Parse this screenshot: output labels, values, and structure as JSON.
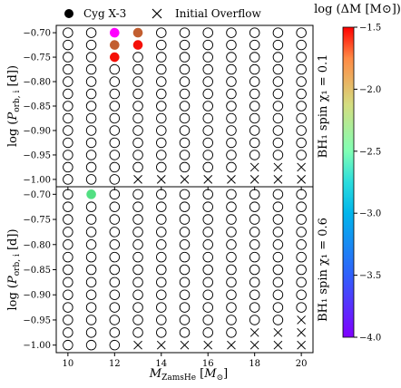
{
  "legend": {
    "cyg_label": "Cyg X-3",
    "overflow_label": "Initial Overflow"
  },
  "colorbar": {
    "title": "log (ΔM [M⊙])",
    "range": [
      -4.0,
      -1.5
    ],
    "ticks": [
      "-1.5",
      "-2.0",
      "-2.5",
      "-3.0",
      "-3.5",
      "-4.0"
    ],
    "colormap": "rainbow"
  },
  "chart_data": [
    {
      "type": "scatter",
      "panel_label": "BH₁ spin χ₁ = 0.1",
      "xlabel": "M_ZamsHe [M⊙]",
      "ylabel": "log (P_orb,i [d])",
      "xlim": [
        9.5,
        20.5
      ],
      "ylim": [
        -1.015,
        -0.685
      ],
      "x_ticks": [
        10,
        12,
        14,
        16,
        18,
        20
      ],
      "y_ticks": [
        "-0.70",
        "-0.75",
        "-0.80",
        "-0.85",
        "-0.90",
        "-0.95",
        "-1.00"
      ],
      "grid_x": [
        10,
        11,
        12,
        13,
        14,
        15,
        16,
        17,
        18,
        19,
        20
      ],
      "grid_y": [
        -0.7,
        -0.725,
        -0.75,
        -0.775,
        -0.8,
        -0.825,
        -0.85,
        -0.875,
        -0.9,
        -0.925,
        -0.95,
        -0.975,
        -1.0
      ],
      "initial_overflow": [
        {
          "x": 13,
          "y": -1.0
        },
        {
          "x": 14,
          "y": -1.0
        },
        {
          "x": 15,
          "y": -1.0
        },
        {
          "x": 16,
          "y": -1.0
        },
        {
          "x": 17,
          "y": -1.0
        },
        {
          "x": 18,
          "y": -1.0
        },
        {
          "x": 19,
          "y": -1.0
        },
        {
          "x": 20,
          "y": -1.0
        },
        {
          "x": 18,
          "y": -0.975
        },
        {
          "x": 19,
          "y": -0.975
        },
        {
          "x": 20,
          "y": -0.975
        }
      ],
      "cyg_x3": [
        {
          "x": 12,
          "y": -0.7,
          "logdm": -4.0
        },
        {
          "x": 13,
          "y": -0.7,
          "logdm": -1.8
        },
        {
          "x": 12,
          "y": -0.725,
          "logdm": -1.8
        },
        {
          "x": 13,
          "y": -0.725,
          "logdm": -1.55
        },
        {
          "x": 12,
          "y": -0.75,
          "logdm": -1.55
        }
      ]
    },
    {
      "type": "scatter",
      "panel_label": "BH₁ spin χ₁ = 0.6",
      "xlabel": "M_ZamsHe [M⊙]",
      "ylabel": "log (P_orb,i [d])",
      "xlim": [
        9.5,
        20.5
      ],
      "ylim": [
        -1.015,
        -0.685
      ],
      "x_ticks": [
        10,
        12,
        14,
        16,
        18,
        20
      ],
      "y_ticks": [
        "-0.70",
        "-0.75",
        "-0.80",
        "-0.85",
        "-0.90",
        "-0.95",
        "-1.00"
      ],
      "grid_x": [
        10,
        11,
        12,
        13,
        14,
        15,
        16,
        17,
        18,
        19,
        20
      ],
      "grid_y": [
        -0.7,
        -0.725,
        -0.75,
        -0.775,
        -0.8,
        -0.825,
        -0.85,
        -0.875,
        -0.9,
        -0.925,
        -0.95,
        -0.975,
        -1.0
      ],
      "initial_overflow": [
        {
          "x": 13,
          "y": -1.0
        },
        {
          "x": 14,
          "y": -1.0
        },
        {
          "x": 15,
          "y": -1.0
        },
        {
          "x": 16,
          "y": -1.0
        },
        {
          "x": 17,
          "y": -1.0
        },
        {
          "x": 18,
          "y": -1.0
        },
        {
          "x": 19,
          "y": -1.0
        },
        {
          "x": 20,
          "y": -1.0
        },
        {
          "x": 18,
          "y": -0.975
        },
        {
          "x": 19,
          "y": -0.975
        },
        {
          "x": 20,
          "y": -0.975
        },
        {
          "x": 20,
          "y": -0.95
        }
      ],
      "cyg_x3": [
        {
          "x": 11,
          "y": -0.7,
          "logdm": -2.35
        }
      ]
    }
  ]
}
